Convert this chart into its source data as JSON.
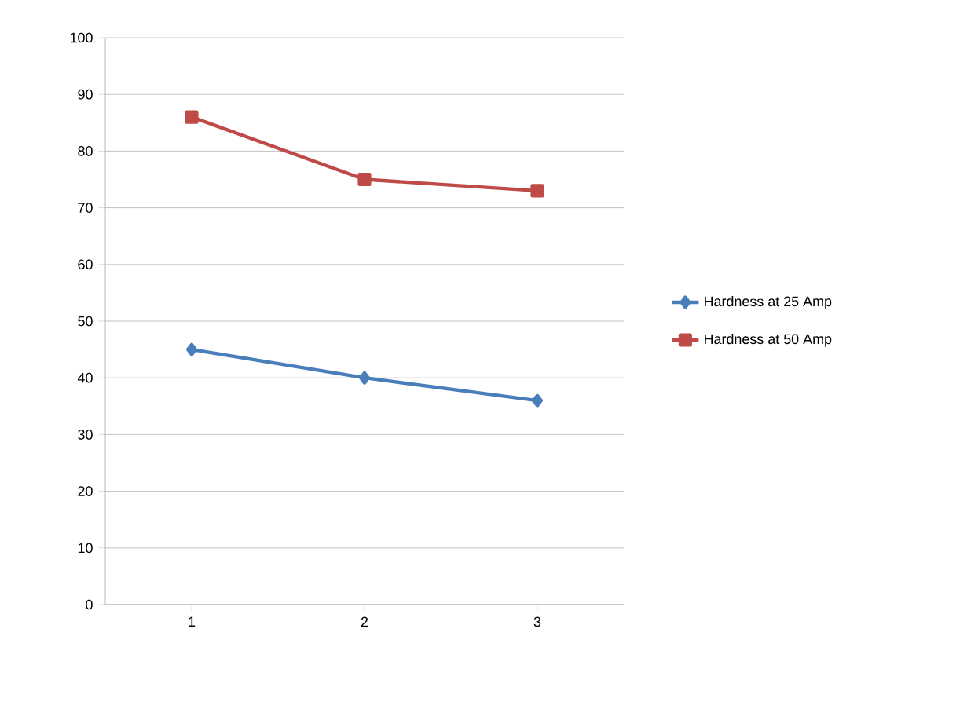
{
  "chart_data": {
    "type": "line",
    "categories": [
      "1",
      "2",
      "3"
    ],
    "series": [
      {
        "name": "Hardness at 25 Amp",
        "color": "#4a7ebb",
        "values": [
          45,
          40,
          36
        ],
        "marker": "diamond"
      },
      {
        "name": "Hardness at 50 Amp",
        "color": "#be4b48",
        "values": [
          86,
          75,
          73
        ],
        "marker": "square"
      }
    ],
    "ylim": [
      0,
      100
    ],
    "yticks": [
      0,
      10,
      20,
      30,
      40,
      50,
      60,
      70,
      80,
      90,
      100
    ],
    "grid": "y",
    "legend": "right"
  }
}
